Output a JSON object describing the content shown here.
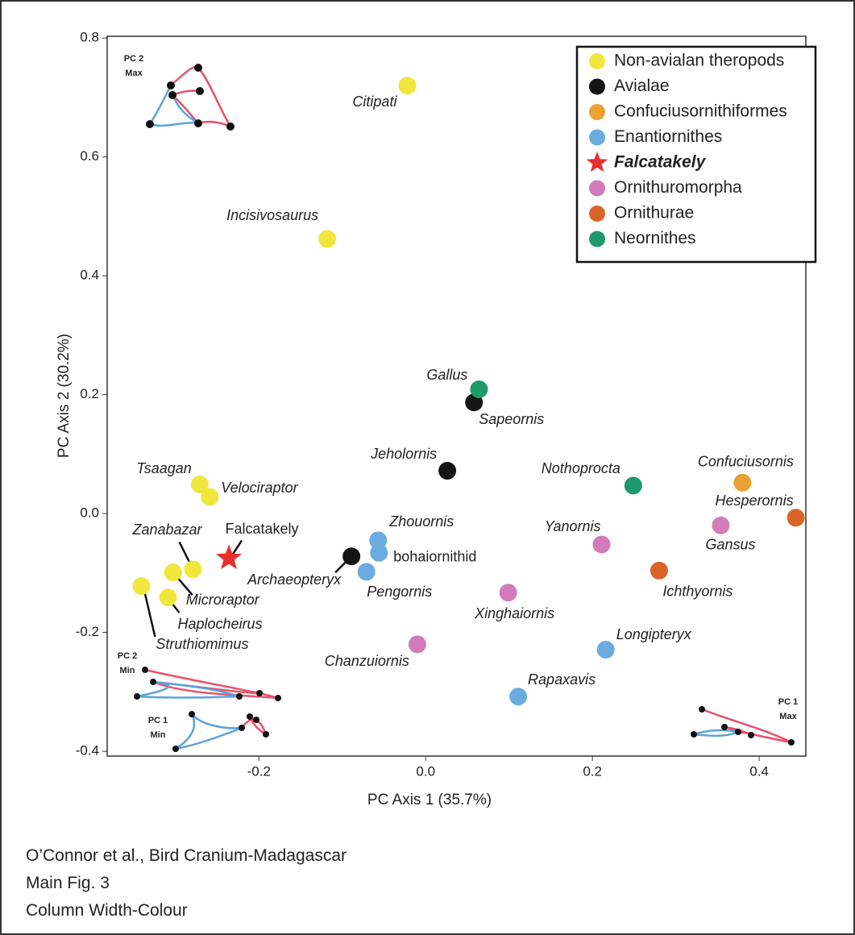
{
  "chart_data": {
    "type": "scatter",
    "xlabel": "PC Axis 1 (35.7%)",
    "ylabel": "PC Axis 2 (30.2%)",
    "xlim": [
      -0.382,
      0.456
    ],
    "ylim": [
      -0.408,
      0.803
    ],
    "xticks": [
      -0.2,
      {
        "value": 0,
        "label": "0.0"
      },
      0.2,
      0.4
    ],
    "yticks": [
      -0.4,
      -0.2,
      {
        "value": 0,
        "label": "0.0"
      },
      0.2,
      0.4,
      0.6,
      0.8
    ],
    "grid": false,
    "legend": "upper right",
    "series": [
      {
        "name": "Non-avialan theropods",
        "color": "#f0e63e",
        "marker": "circle",
        "x": [
          -0.022,
          -0.118,
          -0.271,
          -0.259,
          -0.279,
          -0.303,
          -0.309,
          -0.341
        ],
        "y": [
          0.72,
          0.462,
          0.049,
          0.028,
          -0.094,
          -0.099,
          -0.141,
          -0.122
        ],
        "labels": [
          "Citipati",
          "Incisivosaurus",
          "Tsaagan",
          "Velociraptor",
          "Zanabazar",
          "Microraptor",
          "Haplocheirus",
          "Struthiomimus"
        ]
      },
      {
        "name": "Avialae",
        "color": "#151515",
        "marker": "circle",
        "x": [
          0.058,
          0.026,
          -0.089
        ],
        "y": [
          0.187,
          0.072,
          -0.072
        ],
        "labels": [
          "Sapeornis",
          "Jeholornis",
          "Archaeopteryx"
        ]
      },
      {
        "name": "Confuciusornithiformes",
        "color": "#e8a132",
        "marker": "circle",
        "x": [
          0.38
        ],
        "y": [
          0.052
        ],
        "labels": [
          "Confuciusornis"
        ]
      },
      {
        "name": "Enantiornithes",
        "color": "#6aacdf",
        "marker": "circle",
        "x": [
          -0.057,
          -0.056,
          -0.071,
          0.216,
          0.111
        ],
        "y": [
          -0.045,
          -0.066,
          -0.098,
          -0.229,
          -0.308
        ],
        "labels": [
          "Zhouornis",
          "bohaiornithid",
          "Pengornis",
          "Longipteryx",
          "Rapaxavis"
        ]
      },
      {
        "name": "Falcatakely",
        "color": "#e8302e",
        "marker": "star",
        "x": [
          -0.236
        ],
        "y": [
          -0.075
        ],
        "labels": [
          "Falcatakely"
        ]
      },
      {
        "name": "Ornithuromorpha",
        "color": "#d27cbb",
        "marker": "circle",
        "x": [
          0.211,
          0.354,
          0.099,
          -0.01
        ],
        "y": [
          -0.052,
          -0.02,
          -0.133,
          -0.22
        ],
        "labels": [
          "Yanornis",
          "Gansus",
          "Xinghaiornis",
          "Chanzuiornis"
        ]
      },
      {
        "name": "Ornithurae",
        "color": "#d8642a",
        "marker": "circle",
        "x": [
          0.444,
          0.28
        ],
        "y": [
          -0.007,
          -0.096
        ],
        "labels": [
          "Hesperornis",
          "Ichthyornis"
        ]
      },
      {
        "name": "Neornithes",
        "color": "#1f9a6c",
        "marker": "circle",
        "x": [
          0.064,
          0.249
        ],
        "y": [
          0.209,
          0.047
        ],
        "labels": [
          "Gallus",
          "Nothoprocta"
        ]
      }
    ],
    "insets": [
      [
        "PC 2",
        "Max"
      ],
      [
        "PC 2",
        "Min"
      ],
      [
        "PC 1",
        "Min"
      ],
      [
        "PC 1",
        "Max"
      ]
    ]
  },
  "caption": [
    "O’Connor et al., Bird Cranium-Madagascar",
    "Main Fig. 3",
    "Column Width-Colour"
  ]
}
